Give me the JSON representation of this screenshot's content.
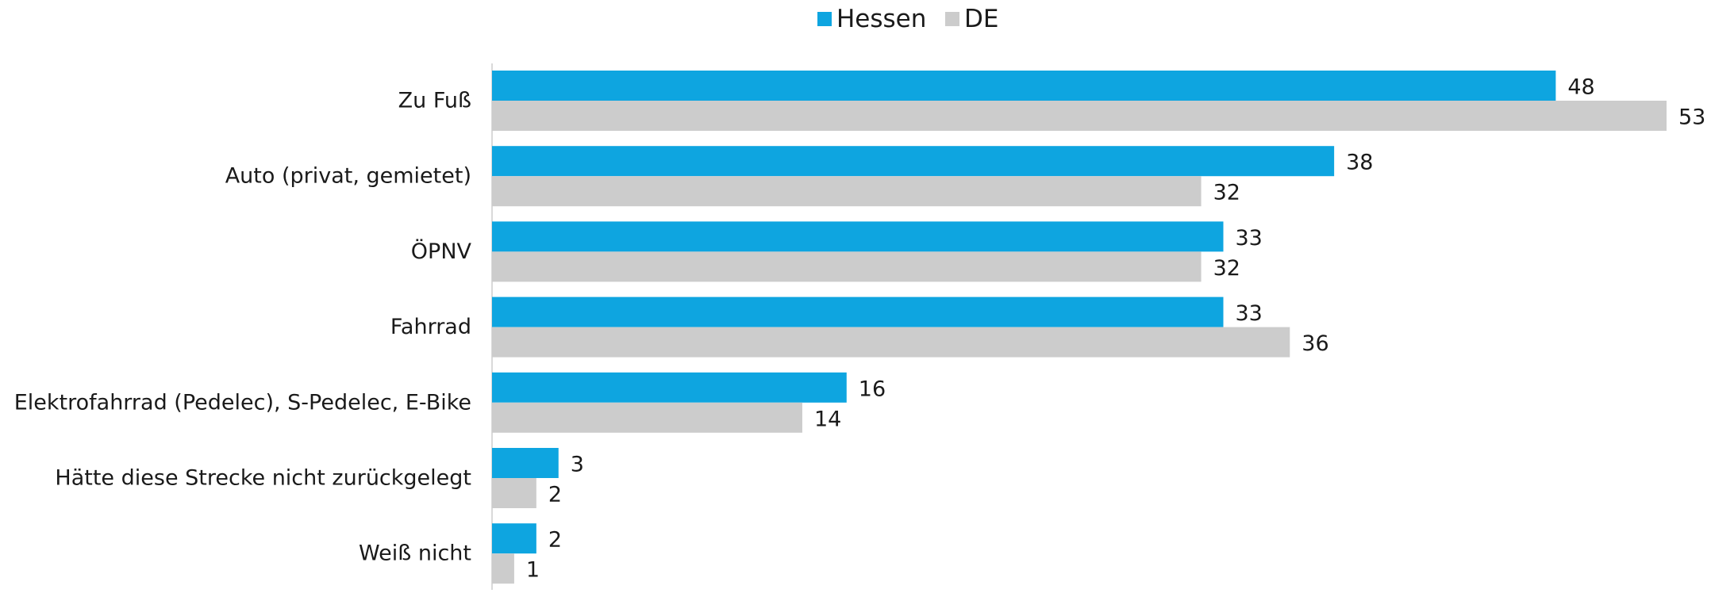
{
  "chart_data": {
    "type": "bar",
    "orientation": "horizontal",
    "categories": [
      "Zu Fuß",
      "Auto (privat, gemietet)",
      "ÖPNV",
      "Fahrrad",
      "Elektrofahrrad (Pedelec), S-Pedelec, E-Bike",
      "Hätte diese Strecke nicht zurückgelegt",
      "Weiß nicht"
    ],
    "series": [
      {
        "name": "Hessen",
        "values": [
          48,
          38,
          33,
          33,
          16,
          3,
          2
        ]
      },
      {
        "name": "DE",
        "values": [
          53,
          32,
          32,
          36,
          14,
          2,
          1
        ]
      }
    ],
    "colors": {
      "Hessen": "#0ea5e0",
      "DE": "#cccccc"
    },
    "xlim": [
      0,
      53
    ],
    "grid": false,
    "legend_position": "top-center",
    "data_labels": true
  }
}
